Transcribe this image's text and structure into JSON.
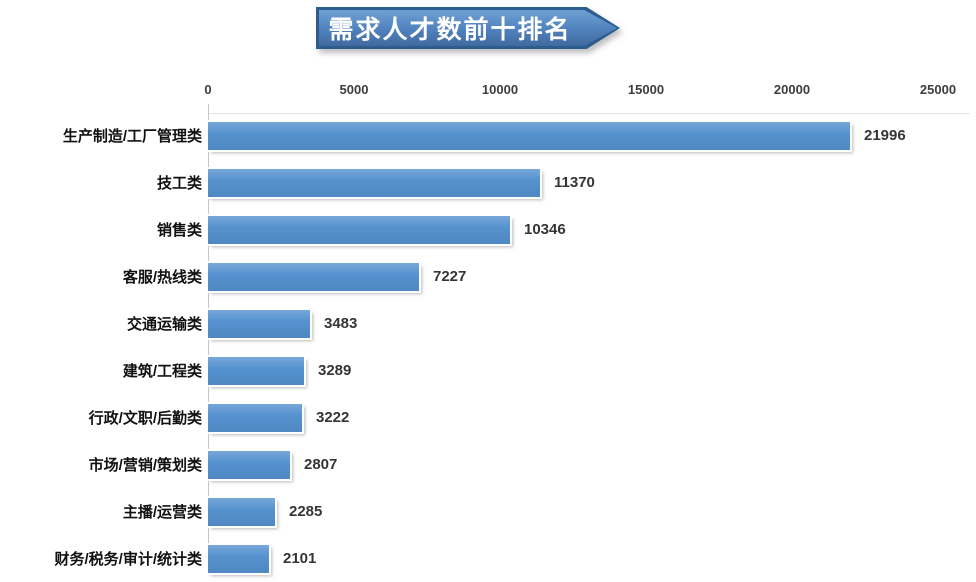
{
  "banner": {
    "title": "需求人才数前十排名",
    "fill_color": "#4f81bd",
    "border_color": "#2d5c8e",
    "text_color": "#ffffff"
  },
  "chart_data": {
    "type": "bar",
    "orientation": "horizontal",
    "title": "需求人才数前十排名",
    "categories": [
      "生产制造/工厂管理类",
      "技工类",
      "销售类",
      "客服/热线类",
      "交通运输类",
      "建筑/工程类",
      "行政/文职/后勤类",
      "市场/营销/策划类",
      "主播/运营类",
      "财务/税务/审计/统计类"
    ],
    "values": [
      21996,
      11370,
      10346,
      7227,
      3483,
      3289,
      3222,
      2807,
      2285,
      2101
    ],
    "x_ticks": [
      0,
      5000,
      10000,
      15000,
      20000,
      25000
    ],
    "xlim": [
      0,
      25000
    ],
    "xlabel": "",
    "ylabel": "",
    "bar_color": "#5592ce",
    "value_labels_shown": true,
    "grid": false,
    "legend_position": "none",
    "tick_label_color": "#3d3d3d",
    "value_label_color": "#353535"
  }
}
